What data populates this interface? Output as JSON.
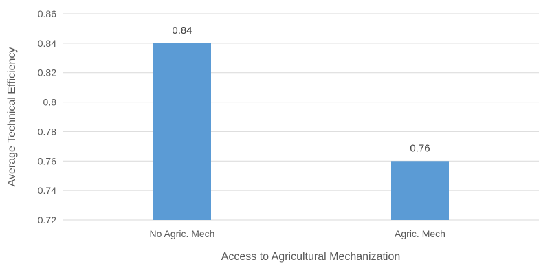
{
  "chart_data": {
    "type": "bar",
    "categories": [
      "No Agric. Mech",
      "Agric. Mech"
    ],
    "values": [
      0.84,
      0.76
    ],
    "data_labels": [
      "0.84",
      "0.76"
    ],
    "xlabel": "Access to Agricultural Mechanization",
    "ylabel": "Average Technical Efficiency",
    "ylim": [
      0.72,
      0.86
    ],
    "yticks": [
      "0.72",
      "0.74",
      "0.76",
      "0.78",
      "0.8",
      "0.82",
      "0.84",
      "0.86"
    ],
    "grid": true,
    "legend": "none",
    "bar_color": "#5b9bd5"
  }
}
